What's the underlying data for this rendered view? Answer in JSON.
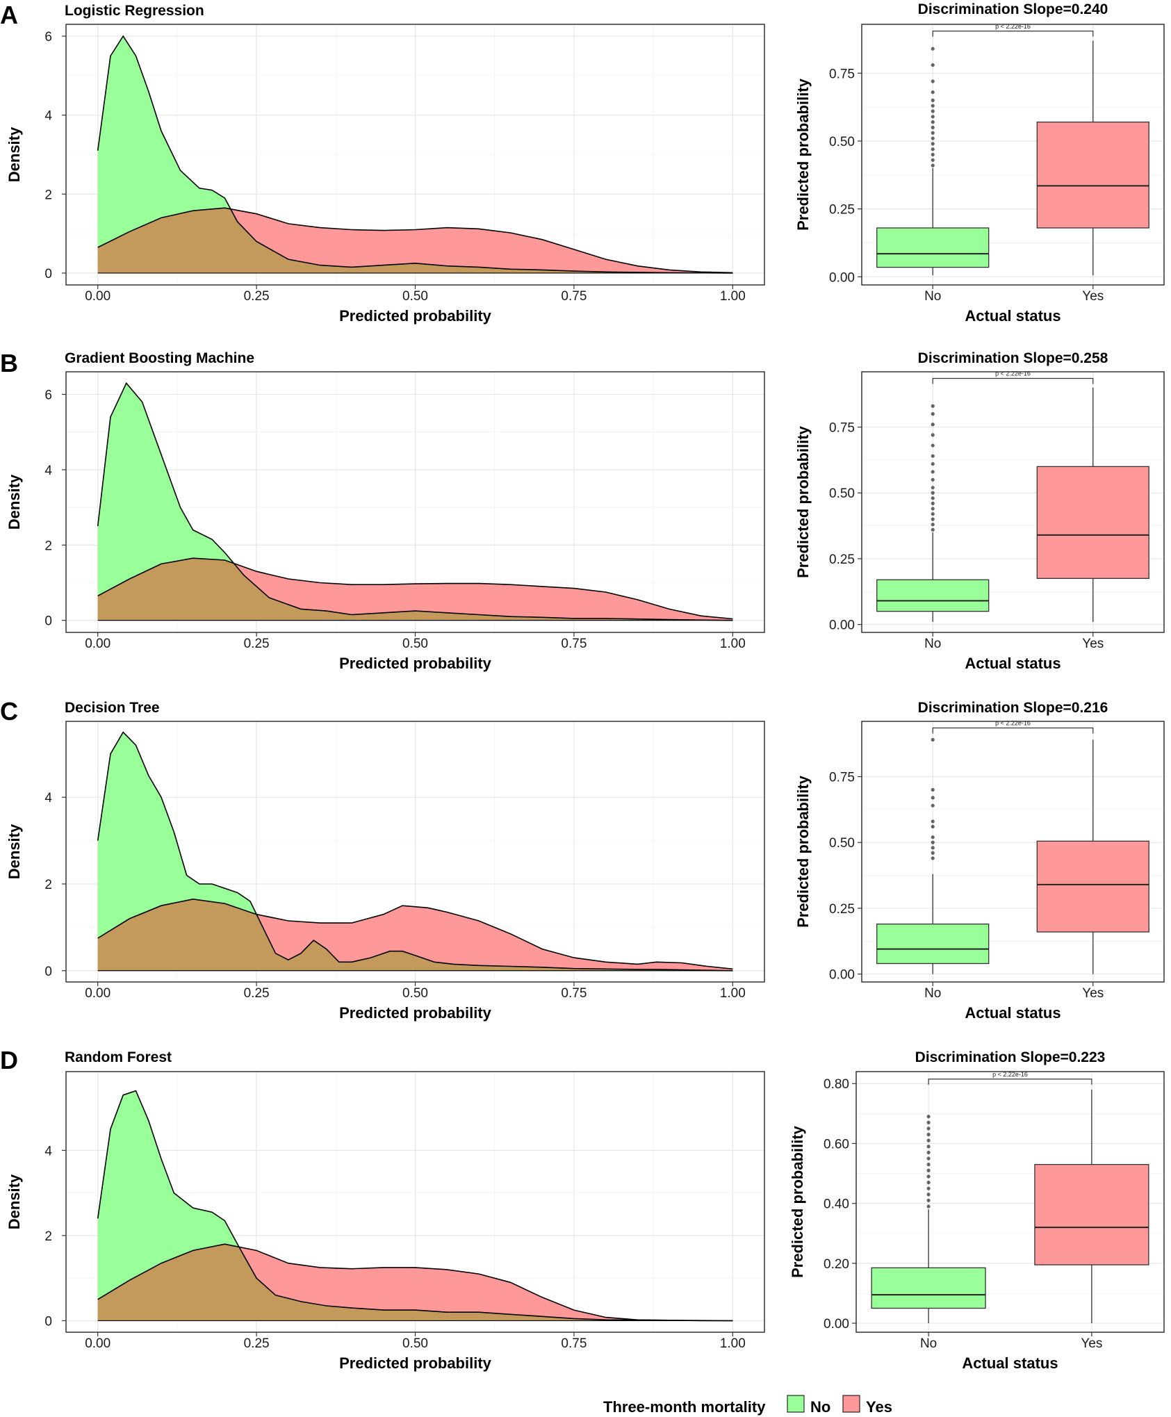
{
  "figure": {
    "legend": {
      "title": "Three-month mortality",
      "entries": [
        {
          "label": "No",
          "color": "#99FF99"
        },
        {
          "label": "Yes",
          "color": "#FF9999"
        }
      ],
      "overlap_color": "#C49A5C",
      "placement": "bottom-center"
    }
  },
  "chart_data": [
    {
      "panel": "A",
      "type": "area",
      "title": "Logistic Regression",
      "xlabel": "Predicted probability",
      "ylabel": "Density",
      "xlim": [
        -0.05,
        1.05
      ],
      "ylim": [
        -0.3,
        6.3
      ],
      "xticks": [
        0,
        0.25,
        0.5,
        0.75,
        1.0
      ],
      "xtick_labels": [
        "0.00",
        "0.25",
        "0.50",
        "0.75",
        "1.00"
      ],
      "yticks": [
        0,
        2,
        4,
        6
      ],
      "ytick_labels": [
        "0",
        "2",
        "4",
        "6"
      ],
      "series": [
        {
          "name": "No",
          "x": [
            0,
            0.02,
            0.04,
            0.06,
            0.08,
            0.1,
            0.13,
            0.16,
            0.18,
            0.2,
            0.22,
            0.25,
            0.3,
            0.35,
            0.4,
            0.45,
            0.5,
            0.55,
            0.6,
            0.65,
            0.7,
            0.75,
            0.8,
            0.9,
            1.0
          ],
          "y": [
            3.1,
            5.5,
            6.0,
            5.5,
            4.6,
            3.6,
            2.6,
            2.15,
            2.1,
            1.9,
            1.3,
            0.8,
            0.35,
            0.2,
            0.15,
            0.2,
            0.25,
            0.18,
            0.15,
            0.1,
            0.08,
            0.05,
            0.03,
            0.01,
            0
          ]
        },
        {
          "name": "Yes",
          "x": [
            0,
            0.05,
            0.1,
            0.15,
            0.2,
            0.25,
            0.3,
            0.35,
            0.4,
            0.45,
            0.5,
            0.55,
            0.6,
            0.65,
            0.7,
            0.75,
            0.8,
            0.85,
            0.9,
            0.95,
            1.0
          ],
          "y": [
            0.65,
            1.05,
            1.4,
            1.58,
            1.65,
            1.5,
            1.25,
            1.15,
            1.1,
            1.08,
            1.1,
            1.15,
            1.12,
            1.02,
            0.85,
            0.6,
            0.35,
            0.18,
            0.08,
            0.03,
            0.01
          ]
        }
      ]
    },
    {
      "panel": "A",
      "type": "box",
      "title": "Discrimination Slope=0.240",
      "xlabel": "Actual status",
      "ylabel": "Predicted probability",
      "categories": [
        "No",
        "Yes"
      ],
      "ylim": [
        -0.03,
        0.93
      ],
      "yticks": [
        0,
        0.25,
        0.5,
        0.75
      ],
      "ytick_labels": [
        "0.00",
        "0.25",
        "0.50",
        "0.75"
      ],
      "annotation": "p < 2.22e-16",
      "bracket_y": 0.905,
      "boxes": [
        {
          "category": "No",
          "min": 0.005,
          "q1": 0.035,
          "median": 0.085,
          "q3": 0.18,
          "max": 0.4,
          "outliers": [
            0.41,
            0.43,
            0.45,
            0.47,
            0.49,
            0.51,
            0.53,
            0.55,
            0.57,
            0.59,
            0.61,
            0.63,
            0.65,
            0.68,
            0.72,
            0.78,
            0.84
          ]
        },
        {
          "category": "Yes",
          "min": 0.005,
          "q1": 0.18,
          "median": 0.335,
          "q3": 0.57,
          "max": 0.87,
          "outliers": []
        }
      ]
    },
    {
      "panel": "B",
      "type": "area",
      "title": "Gradient Boosting Machine",
      "xlabel": "Predicted probability",
      "ylabel": "Density",
      "xlim": [
        -0.05,
        1.05
      ],
      "ylim": [
        -0.32,
        6.6
      ],
      "xticks": [
        0,
        0.25,
        0.5,
        0.75,
        1.0
      ],
      "xtick_labels": [
        "0.00",
        "0.25",
        "0.50",
        "0.75",
        "1.00"
      ],
      "yticks": [
        0,
        2,
        4,
        6
      ],
      "ytick_labels": [
        "0",
        "2",
        "4",
        "6"
      ],
      "series": [
        {
          "name": "No",
          "x": [
            0,
            0.02,
            0.045,
            0.07,
            0.1,
            0.13,
            0.15,
            0.18,
            0.2,
            0.23,
            0.27,
            0.32,
            0.36,
            0.4,
            0.45,
            0.5,
            0.55,
            0.6,
            0.65,
            0.7,
            0.75,
            0.8,
            0.9,
            1.0
          ],
          "y": [
            2.5,
            5.4,
            6.3,
            5.8,
            4.4,
            3.0,
            2.4,
            2.15,
            1.8,
            1.2,
            0.6,
            0.3,
            0.25,
            0.15,
            0.2,
            0.25,
            0.2,
            0.15,
            0.1,
            0.08,
            0.05,
            0.05,
            0.02,
            0
          ]
        },
        {
          "name": "Yes",
          "x": [
            0,
            0.05,
            0.1,
            0.15,
            0.2,
            0.25,
            0.3,
            0.35,
            0.4,
            0.45,
            0.5,
            0.55,
            0.6,
            0.65,
            0.7,
            0.75,
            0.8,
            0.85,
            0.9,
            0.95,
            1.0
          ],
          "y": [
            0.65,
            1.1,
            1.5,
            1.65,
            1.6,
            1.3,
            1.1,
            1.0,
            0.95,
            0.95,
            0.97,
            0.98,
            0.98,
            0.95,
            0.9,
            0.85,
            0.75,
            0.55,
            0.3,
            0.12,
            0.04
          ]
        }
      ]
    },
    {
      "panel": "B",
      "type": "box",
      "title": "Discrimination Slope=0.258",
      "xlabel": "Actual status",
      "ylabel": "Predicted probability",
      "categories": [
        "No",
        "Yes"
      ],
      "ylim": [
        -0.03,
        0.96
      ],
      "yticks": [
        0,
        0.25,
        0.5,
        0.75
      ],
      "ytick_labels": [
        "0.00",
        "0.25",
        "0.50",
        "0.75"
      ],
      "annotation": "p < 2.22e-16",
      "bracket_y": 0.935,
      "boxes": [
        {
          "category": "No",
          "min": 0.01,
          "q1": 0.05,
          "median": 0.09,
          "q3": 0.17,
          "max": 0.35,
          "outliers": [
            0.36,
            0.38,
            0.4,
            0.42,
            0.44,
            0.46,
            0.48,
            0.5,
            0.52,
            0.55,
            0.58,
            0.61,
            0.64,
            0.68,
            0.72,
            0.76,
            0.8,
            0.83
          ]
        },
        {
          "category": "Yes",
          "min": 0.01,
          "q1": 0.175,
          "median": 0.34,
          "q3": 0.6,
          "max": 0.9,
          "outliers": []
        }
      ]
    },
    {
      "panel": "C",
      "type": "area",
      "title": "Decision Tree",
      "xlabel": "Predicted probability",
      "ylabel": "Density",
      "xlim": [
        -0.05,
        1.05
      ],
      "ylim": [
        -0.26,
        5.75
      ],
      "xticks": [
        0,
        0.25,
        0.5,
        0.75,
        1.0
      ],
      "xtick_labels": [
        "0.00",
        "0.25",
        "0.50",
        "0.75",
        "1.00"
      ],
      "yticks": [
        0,
        2,
        4
      ],
      "ytick_labels": [
        "0",
        "2",
        "4"
      ],
      "series": [
        {
          "name": "No",
          "x": [
            0,
            0.02,
            0.04,
            0.06,
            0.08,
            0.1,
            0.12,
            0.14,
            0.16,
            0.18,
            0.2,
            0.22,
            0.24,
            0.26,
            0.28,
            0.3,
            0.32,
            0.34,
            0.36,
            0.38,
            0.4,
            0.43,
            0.46,
            0.48,
            0.5,
            0.53,
            0.56,
            0.6,
            0.65,
            0.7,
            0.75,
            0.8,
            0.85,
            0.88,
            0.92,
            0.96,
            1.0
          ],
          "y": [
            3.0,
            5.0,
            5.5,
            5.2,
            4.5,
            4.0,
            3.2,
            2.2,
            2.0,
            2.0,
            1.9,
            1.8,
            1.6,
            1.0,
            0.4,
            0.25,
            0.4,
            0.7,
            0.5,
            0.2,
            0.2,
            0.3,
            0.45,
            0.45,
            0.35,
            0.2,
            0.15,
            0.12,
            0.1,
            0.08,
            0.05,
            0.04,
            0.03,
            0.03,
            0.02,
            0.01,
            0
          ]
        },
        {
          "name": "Yes",
          "x": [
            0,
            0.05,
            0.1,
            0.15,
            0.2,
            0.25,
            0.3,
            0.35,
            0.4,
            0.45,
            0.48,
            0.52,
            0.55,
            0.6,
            0.65,
            0.7,
            0.75,
            0.8,
            0.85,
            0.88,
            0.92,
            0.96,
            1.0
          ],
          "y": [
            0.75,
            1.2,
            1.5,
            1.65,
            1.55,
            1.3,
            1.15,
            1.1,
            1.1,
            1.3,
            1.5,
            1.45,
            1.35,
            1.15,
            0.85,
            0.5,
            0.3,
            0.2,
            0.15,
            0.2,
            0.18,
            0.1,
            0.04
          ]
        }
      ]
    },
    {
      "panel": "C",
      "type": "box",
      "title": "Discrimination Slope=0.216",
      "xlabel": "Actual status",
      "ylabel": "Predicted probability",
      "categories": [
        "No",
        "Yes"
      ],
      "ylim": [
        -0.03,
        0.96
      ],
      "yticks": [
        0,
        0.25,
        0.5,
        0.75
      ],
      "ytick_labels": [
        "0.00",
        "0.25",
        "0.50",
        "0.75"
      ],
      "annotation": "p < 2.22e-16",
      "bracket_y": 0.935,
      "boxes": [
        {
          "category": "No",
          "min": 0.0,
          "q1": 0.04,
          "median": 0.095,
          "q3": 0.19,
          "max": 0.38,
          "outliers": [
            0.44,
            0.46,
            0.48,
            0.5,
            0.52,
            0.56,
            0.58,
            0.64,
            0.67,
            0.7,
            0.89
          ]
        },
        {
          "category": "Yes",
          "min": 0.0,
          "q1": 0.16,
          "median": 0.34,
          "q3": 0.505,
          "max": 0.89,
          "outliers": []
        }
      ]
    },
    {
      "panel": "D",
      "type": "area",
      "title": "Random Forest",
      "xlabel": "Predicted probability",
      "ylabel": "Density",
      "xlim": [
        -0.05,
        1.05
      ],
      "ylim": [
        -0.27,
        5.85
      ],
      "xticks": [
        0,
        0.25,
        0.5,
        0.75,
        1.0
      ],
      "xtick_labels": [
        "0.00",
        "0.25",
        "0.50",
        "0.75",
        "1.00"
      ],
      "yticks": [
        0,
        2,
        4
      ],
      "ytick_labels": [
        "0",
        "2",
        "4"
      ],
      "series": [
        {
          "name": "No",
          "x": [
            0,
            0.02,
            0.04,
            0.06,
            0.08,
            0.1,
            0.12,
            0.15,
            0.18,
            0.2,
            0.22,
            0.25,
            0.28,
            0.32,
            0.36,
            0.4,
            0.45,
            0.5,
            0.55,
            0.6,
            0.65,
            0.7,
            0.75,
            0.8,
            0.9,
            1.0
          ],
          "y": [
            2.4,
            4.5,
            5.3,
            5.4,
            4.7,
            3.8,
            3.0,
            2.65,
            2.55,
            2.35,
            1.8,
            1.0,
            0.6,
            0.45,
            0.35,
            0.3,
            0.25,
            0.25,
            0.2,
            0.2,
            0.15,
            0.1,
            0.05,
            0.02,
            0.01,
            0
          ]
        },
        {
          "name": "Yes",
          "x": [
            0,
            0.05,
            0.1,
            0.15,
            0.2,
            0.25,
            0.3,
            0.35,
            0.4,
            0.45,
            0.5,
            0.55,
            0.6,
            0.65,
            0.7,
            0.75,
            0.8,
            0.85,
            0.9,
            0.95,
            1.0
          ],
          "y": [
            0.5,
            0.95,
            1.35,
            1.65,
            1.8,
            1.65,
            1.35,
            1.25,
            1.22,
            1.25,
            1.25,
            1.2,
            1.1,
            0.9,
            0.55,
            0.25,
            0.08,
            0.02,
            0.01,
            0,
            0
          ]
        }
      ]
    },
    {
      "panel": "D",
      "type": "box",
      "title": "Discrimination Slope=0.223",
      "xlabel": "Actual status",
      "ylabel": "Predicted probability",
      "categories": [
        "No",
        "Yes"
      ],
      "ylim": [
        -0.03,
        0.84
      ],
      "yticks": [
        0,
        0.2,
        0.4,
        0.6,
        0.8
      ],
      "ytick_labels": [
        "0.00",
        "0.20",
        "0.40",
        "0.60",
        "0.80"
      ],
      "annotation": "p < 2.22e-16",
      "bracket_y": 0.815,
      "boxes": [
        {
          "category": "No",
          "min": 0.0,
          "q1": 0.05,
          "median": 0.095,
          "q3": 0.185,
          "max": 0.38,
          "outliers": [
            0.39,
            0.41,
            0.43,
            0.45,
            0.47,
            0.49,
            0.51,
            0.53,
            0.55,
            0.57,
            0.59,
            0.61,
            0.63,
            0.65,
            0.67,
            0.69
          ]
        },
        {
          "category": "Yes",
          "min": 0.0,
          "q1": 0.195,
          "median": 0.32,
          "q3": 0.53,
          "max": 0.78,
          "outliers": []
        }
      ]
    }
  ]
}
